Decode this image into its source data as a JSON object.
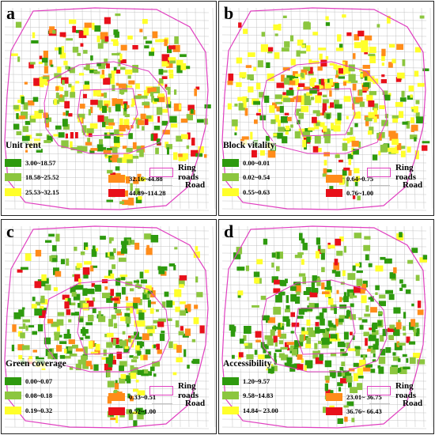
{
  "colors": {
    "ring": "#e040c0",
    "road": "#bdbdbd",
    "classes": [
      "#2e9a0e",
      "#8cc63f",
      "#ffff2a",
      "#ff8c1a",
      "#e8101a"
    ]
  },
  "legend_common": {
    "ring_roads": "Ring roads",
    "road": "Road"
  },
  "panels": [
    {
      "letter": "a",
      "title": "Unit rent",
      "classes": [
        "3.00~18.57",
        "18.58~25.52",
        "25.53~32.15",
        "32.16~44.88",
        "44.89~114.28"
      ],
      "weights": [
        0.15,
        0.28,
        0.27,
        0.18,
        0.12
      ]
    },
    {
      "letter": "b",
      "title": "Block vitality",
      "classes": [
        "0.00~0.01",
        "0.02~0.54",
        "0.55~0.63",
        "0.64~0.75",
        "0.76~1.00"
      ],
      "weights": [
        0.12,
        0.24,
        0.38,
        0.16,
        0.1
      ]
    },
    {
      "letter": "c",
      "title": "Green coverage",
      "classes": [
        "0.00~0.07",
        "0.08~0.18",
        "0.19~0.32",
        "0.33~0.51",
        "0.52~1.00"
      ],
      "weights": [
        0.34,
        0.3,
        0.18,
        0.12,
        0.06
      ]
    },
    {
      "letter": "d",
      "title": "Accessibility",
      "classes": [
        "1.20~9.57",
        "9.58~14.83",
        "14.84~ 23.00",
        "23.01~ 36.75",
        "36.76~ 66.43"
      ],
      "weights": [
        0.44,
        0.32,
        0.1,
        0.08,
        0.06
      ]
    }
  ]
}
